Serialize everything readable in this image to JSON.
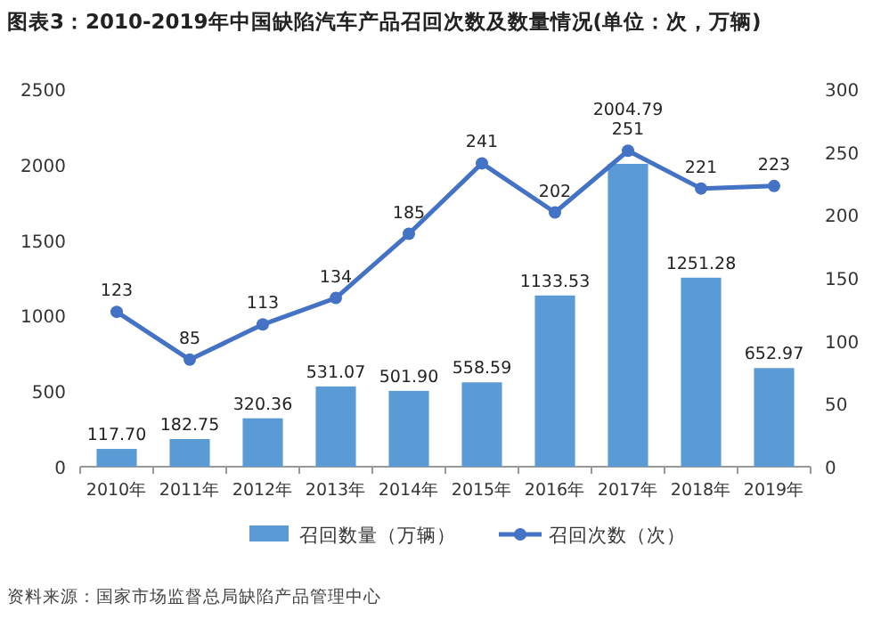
{
  "chart_data": {
    "type": "bar",
    "title": "图表3：2010-2019年中国缺陷汽车产品召回次数及数量情况(单位：次，万辆)",
    "categories": [
      "2010年",
      "2011年",
      "2012年",
      "2013年",
      "2014年",
      "2015年",
      "2016年",
      "2017年",
      "2018年",
      "2019年"
    ],
    "series": [
      {
        "name": "召回数量（万辆）",
        "color": "#5b9bd5",
        "values": [
          117.7,
          182.75,
          320.36,
          531.07,
          501.9,
          558.59,
          1133.53,
          2004.79,
          1251.28,
          652.97
        ],
        "value_labels": [
          "117.70",
          "182.75",
          "320.36",
          "531.07",
          "501.90",
          "558.59",
          "1133.53",
          "2004.79",
          "1251.28",
          "652.97"
        ]
      },
      {
        "name": "召回次数（次）",
        "type": "line",
        "axis": "y2",
        "color": "#4472c4",
        "values": [
          123,
          85,
          113,
          134,
          185,
          241,
          202,
          251,
          221,
          223
        ]
      }
    ],
    "ylim": [
      0,
      2500
    ],
    "yticks": [
      0,
      500,
      1000,
      1500,
      2000,
      2500
    ],
    "y2lim": [
      0,
      300
    ],
    "y2ticks": [
      0,
      50,
      100,
      150,
      200,
      250,
      300
    ],
    "data_labels": true,
    "legend": "bottom",
    "marker": "circle",
    "grid": false,
    "annotations": [
      "资料来源：国家市场监督总局缺陷产品管理中心"
    ]
  }
}
